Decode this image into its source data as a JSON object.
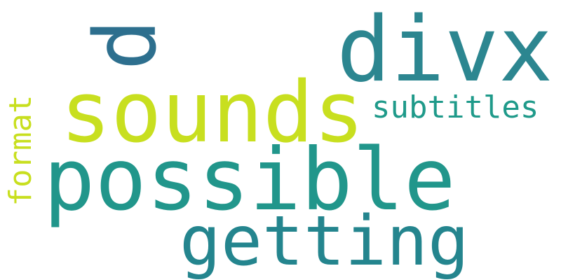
{
  "word_cloud": {
    "words": [
      {
        "key": "p",
        "text": "p",
        "color": "#2d6f8e"
      },
      {
        "key": "divx",
        "text": "divx",
        "color": "#2c8690"
      },
      {
        "key": "sounds",
        "text": "sounds",
        "color": "#c8df1f"
      },
      {
        "key": "subtitles",
        "text": "subtitles",
        "color": "#1f9a8a"
      },
      {
        "key": "format",
        "text": "format",
        "color": "#c8df1f"
      },
      {
        "key": "possible",
        "text": "possible",
        "color": "#21968b"
      },
      {
        "key": "getting",
        "text": "getting",
        "color": "#24858e"
      }
    ]
  }
}
